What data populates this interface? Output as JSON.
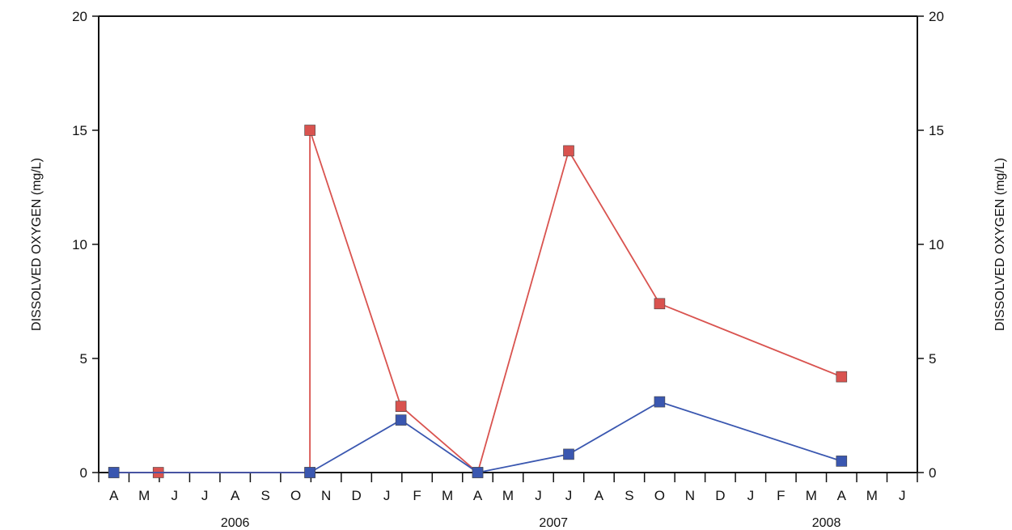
{
  "chart_data": {
    "type": "line",
    "title": "",
    "ylabel_left": "DISSOLVED OXYGEN (mg/L)",
    "ylabel_right": "DISSOLVED OXYGEN (mg/L)",
    "ylim": [
      0,
      20
    ],
    "yticks": [
      "0",
      "5",
      "10",
      "15",
      "20"
    ],
    "grid": false,
    "months": [
      "A",
      "M",
      "J",
      "J",
      "A",
      "S",
      "O",
      "N",
      "D",
      "J",
      "F",
      "M",
      "A",
      "M",
      "J",
      "J",
      "A",
      "S",
      "O",
      "N",
      "D",
      "J",
      "F",
      "M",
      "A",
      "M",
      "J"
    ],
    "years": [
      "2006",
      "2007",
      "2008"
    ],
    "colors": {
      "red_series": "#d9534f",
      "blue_series": "#3a57b0",
      "axis": "#111111"
    },
    "series": [
      {
        "color_key": "red_series",
        "x": [
          "2006-04-01",
          "2006-05-15",
          "2006-10-15",
          "2006-10-15",
          "2007-01-15",
          "2007-04-01",
          "2007-07-01",
          "2007-10-01",
          "2008-04-01"
        ],
        "values": [
          0,
          0,
          0,
          15,
          2.9,
          0,
          14.1,
          7.4,
          4.2
        ]
      },
      {
        "color_key": "blue_series",
        "x": [
          "2006-04-01",
          "2006-10-15",
          "2007-01-15",
          "2007-04-01",
          "2007-07-01",
          "2007-10-01",
          "2008-04-01"
        ],
        "values": [
          0,
          0,
          2.3,
          0,
          0.8,
          3.1,
          0.5
        ]
      }
    ]
  }
}
